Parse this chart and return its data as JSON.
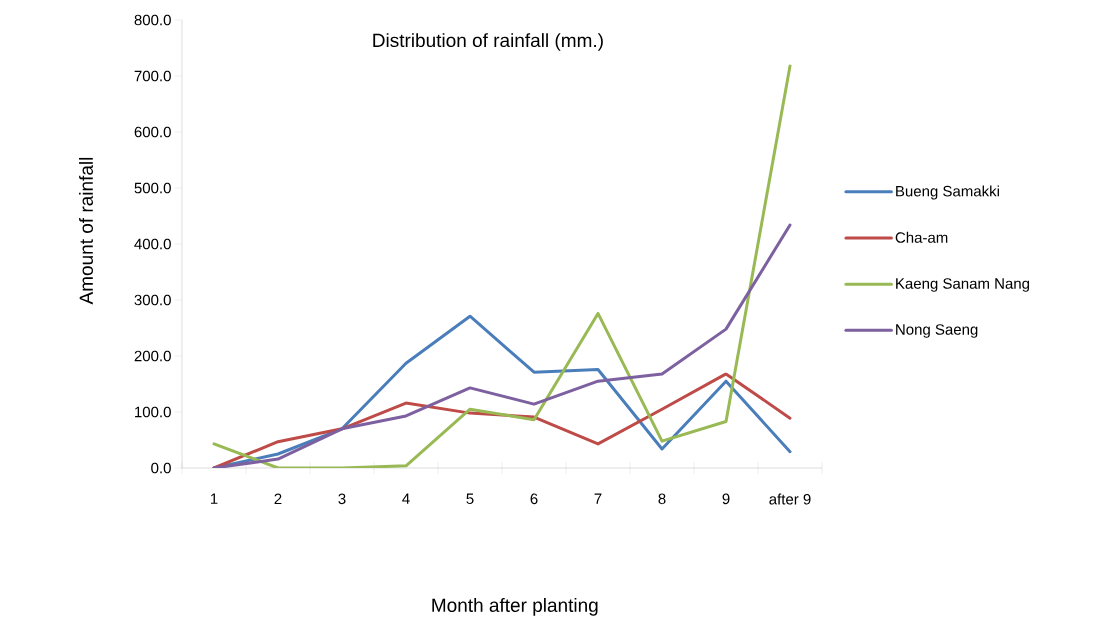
{
  "chart_data": {
    "type": "line",
    "title": "Distribution of rainfall (mm.)",
    "xlabel": "Month after planting",
    "ylabel": "Amount of rainfall",
    "categories": [
      "1",
      "2",
      "3",
      "4",
      "5",
      "6",
      "7",
      "8",
      "9",
      "after 9"
    ],
    "series": [
      {
        "name": "Bueng Samakki",
        "color": "#4a7ebb",
        "values": [
          0,
          25,
          70,
          187,
          271,
          171,
          176,
          34,
          155,
          29
        ]
      },
      {
        "name": "Cha-am",
        "color": "#be4b48",
        "values": [
          0,
          47,
          70,
          116,
          98,
          91,
          43,
          105,
          168,
          89
        ]
      },
      {
        "name": "Kaeng Sanam Nang",
        "color": "#98b954",
        "values": [
          43,
          0,
          0,
          4,
          105,
          86,
          276,
          48,
          83,
          718
        ]
      },
      {
        "name": "Nong Saeng",
        "color": "#7d60a0",
        "values": [
          0,
          16,
          70,
          93,
          143,
          114,
          155,
          168,
          248,
          434
        ]
      }
    ],
    "ylim": [
      0,
      800
    ],
    "yticks": [
      {
        "value": 0,
        "label": "0.0"
      },
      {
        "value": 100,
        "label": "100.0"
      },
      {
        "value": 200,
        "label": "200.0"
      },
      {
        "value": 300,
        "label": "300.0"
      },
      {
        "value": 400,
        "label": "400.0"
      },
      {
        "value": 500,
        "label": "500.0"
      },
      {
        "value": 600,
        "label": "600.0"
      },
      {
        "value": 700,
        "label": "700.0"
      },
      {
        "value": 800,
        "label": "800.0"
      }
    ],
    "grid": false,
    "legend": "right",
    "marker": "none",
    "line_style": "solid"
  }
}
